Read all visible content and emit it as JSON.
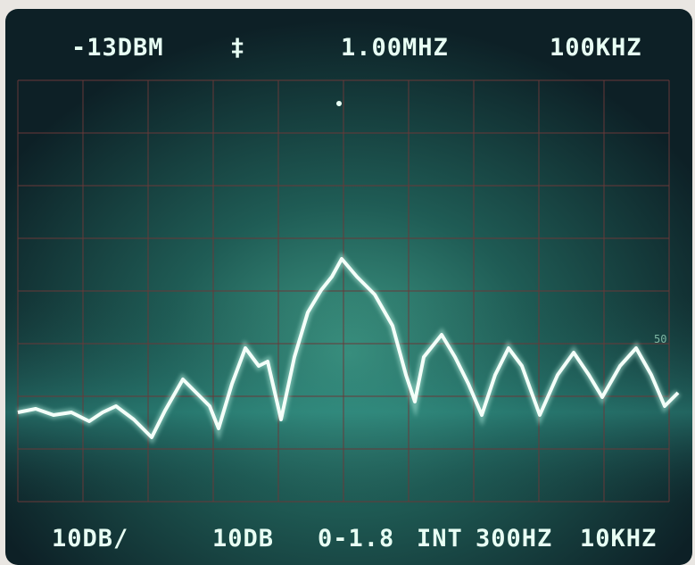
{
  "top_readout": [
    "-13DBM",
    "‡",
    "1.00MHZ",
    "100KHZ"
  ],
  "bottom_readout": [
    "10DB/",
    "10DB",
    "0-1.8",
    "INT",
    "300HZ",
    "10KHZ"
  ],
  "scale_mark": "50"
}
